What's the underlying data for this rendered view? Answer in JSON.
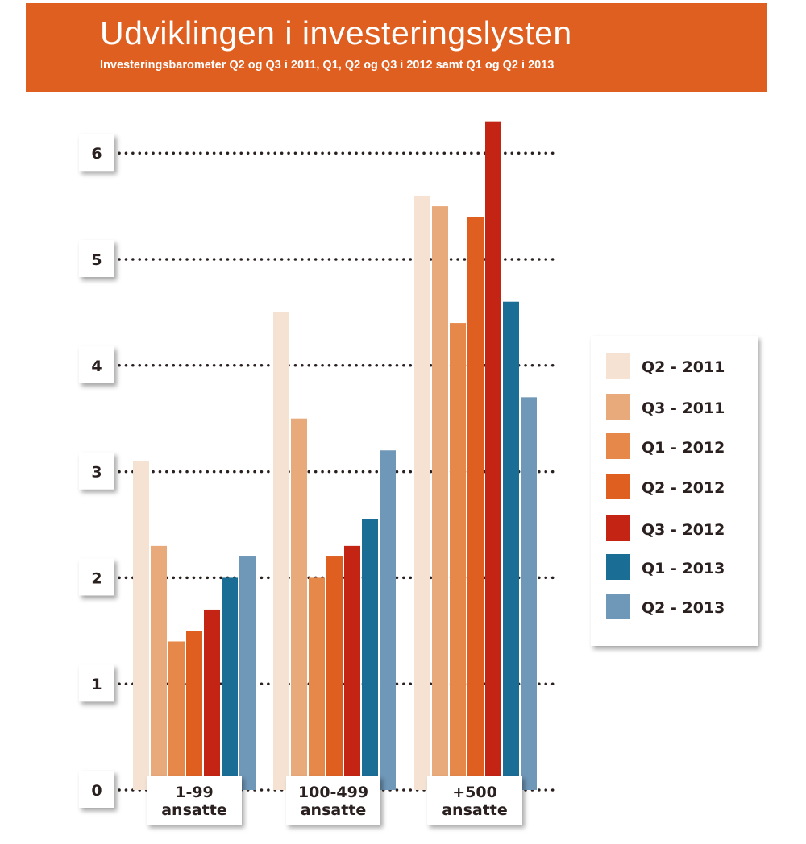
{
  "header": {
    "title": "Udviklingen i investeringslysten",
    "subtitle": "Investeringsbarometer Q2 og Q3 i 2011,  Q1, Q2 og Q3 i 2012 samt Q1  og Q2 i 2013"
  },
  "colors": {
    "header": "#df5f20"
  },
  "chart_data": {
    "type": "bar",
    "title": "Udviklingen i investeringslysten",
    "subtitle": "Investeringsbarometer Q2 og Q3 i 2011,  Q1, Q2 og Q3 i 2012 samt Q1  og Q2 i 2013",
    "xlabel": "",
    "ylabel": "",
    "ylim": [
      0,
      6.4
    ],
    "yticks": [
      0,
      1,
      2,
      3,
      4,
      5,
      6
    ],
    "grid": true,
    "legend_position": "right",
    "categories": [
      [
        "1-99",
        "ansatte"
      ],
      [
        "100-499",
        "ansatte"
      ],
      [
        "+500",
        "ansatte"
      ]
    ],
    "series": [
      {
        "name": "Q2 - 2011",
        "color": "#f5e2d3",
        "values": [
          3.1,
          4.5,
          5.6
        ]
      },
      {
        "name": "Q3 - 2011",
        "color": "#e9aa7b",
        "values": [
          2.3,
          3.5,
          5.5
        ]
      },
      {
        "name": "Q1 - 2012",
        "color": "#e5884a",
        "values": [
          1.4,
          2.0,
          4.4
        ]
      },
      {
        "name": "Q2 - 2012",
        "color": "#de5f20",
        "values": [
          1.5,
          2.2,
          5.4
        ]
      },
      {
        "name": "Q3 - 2012",
        "color": "#c42414",
        "values": [
          1.7,
          2.3,
          6.3
        ]
      },
      {
        "name": "Q1 - 2013",
        "color": "#1a6d95",
        "values": [
          2.0,
          2.55,
          4.6
        ]
      },
      {
        "name": "Q2 - 2013",
        "color": "#6f97b8",
        "values": [
          2.2,
          3.2,
          3.7
        ]
      }
    ]
  }
}
